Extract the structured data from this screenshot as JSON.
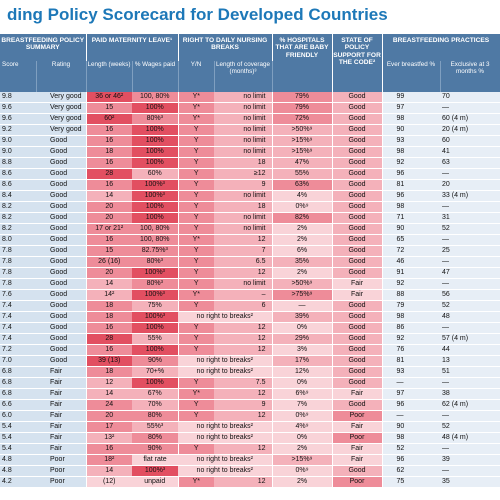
{
  "title": "ding Policy Scorecard for Developed Countries",
  "groups": {
    "summary": "BREASTFEEDING POLICY SUMMARY",
    "leave": "PAID MATERNITY LEAVE¹",
    "breaks": "RIGHT TO DAILY NURSING BREAKS",
    "hospitals": "% HOSPITALS THAT ARE BABY FRIENDLY",
    "code": "STATE OF POLICY SUPPORT FOR THE CODE²",
    "practices": "BREASTFEEDING PRACTICES"
  },
  "subheaders": {
    "score": "Score",
    "rating": "Rating",
    "length": "Length (weeks)",
    "wages": "% Wages paid",
    "yn": "Y/N",
    "coverage": "Length of coverage (months)³",
    "ever": "Ever breastfed %",
    "exclusive": "Exclusive at 3 months %"
  },
  "colors": {
    "header_blue": "#4f79a4",
    "title_blue": "#1d78b8",
    "summary_bg": "#d5e2ef",
    "practices_bg": "#e7eef6",
    "red1": "#e24f61",
    "red2": "#ee8c99",
    "red3": "#f4b1ba",
    "red4": "#f9d3d8"
  },
  "rows": [
    {
      "score": "9.8",
      "rating": "Very good",
      "length": "36 or 46²",
      "wages": "100, 80%",
      "yn": "Y*",
      "coverage": "no limit",
      "hosp": "79%",
      "code": "Good",
      "ever": "99",
      "excl": "70",
      "sh": [
        1,
        2,
        2,
        3,
        3,
        2,
        3
      ]
    },
    {
      "score": "9.6",
      "rating": "Very good",
      "length": "15",
      "wages": "100%",
      "yn": "Y*",
      "coverage": "no limit",
      "hosp": "79%",
      "code": "Good",
      "ever": "97",
      "excl": "—",
      "sh": [
        2,
        1,
        2,
        3,
        3,
        2,
        3
      ]
    },
    {
      "score": "9.6",
      "rating": "Very good",
      "length": "60²",
      "wages": "80%³",
      "yn": "Y*",
      "coverage": "no limit",
      "hosp": "72%",
      "code": "Good",
      "ever": "98",
      "excl": "60 (4 m)",
      "sh": [
        1,
        2,
        2,
        3,
        3,
        2,
        3
      ]
    },
    {
      "score": "9.2",
      "rating": "Very good",
      "length": "16",
      "wages": "100%",
      "yn": "Y",
      "coverage": "no limit",
      "hosp": ">50%⁹",
      "code": "Good",
      "ever": "90",
      "excl": "20 (4 m)",
      "sh": [
        2,
        1,
        2,
        3,
        3,
        3,
        3
      ]
    },
    {
      "score": "9.0",
      "rating": "Good",
      "length": "16",
      "wages": "100%",
      "yn": "Y",
      "coverage": "no limit",
      "hosp": ">15%⁹",
      "code": "Good",
      "ever": "93",
      "excl": "60",
      "sh": [
        2,
        1,
        2,
        3,
        3,
        3,
        3
      ]
    },
    {
      "score": "9.0",
      "rating": "Good",
      "length": "18",
      "wages": "100%",
      "yn": "Y",
      "coverage": "no limit",
      "hosp": ">15%⁹",
      "code": "Good",
      "ever": "98",
      "excl": "41",
      "sh": [
        2,
        1,
        2,
        3,
        3,
        3,
        3
      ]
    },
    {
      "score": "8.8",
      "rating": "Good",
      "length": "16",
      "wages": "100%",
      "yn": "Y",
      "coverage": "18",
      "hosp": "47%",
      "code": "Good",
      "ever": "92",
      "excl": "63",
      "sh": [
        2,
        1,
        2,
        3,
        3,
        3,
        3
      ]
    },
    {
      "score": "8.6",
      "rating": "Good",
      "length": "28",
      "wages": "60%",
      "yn": "Y",
      "coverage": "≥12",
      "hosp": "55%",
      "code": "Good",
      "ever": "96",
      "excl": "—",
      "sh": [
        1,
        3,
        2,
        3,
        3,
        3,
        3
      ]
    },
    {
      "score": "8.6",
      "rating": "Good",
      "length": "16",
      "wages": "100%³",
      "yn": "Y",
      "coverage": "9",
      "hosp": "63%",
      "code": "Good",
      "ever": "81",
      "excl": "20",
      "sh": [
        2,
        1,
        2,
        3,
        3,
        2,
        3
      ]
    },
    {
      "score": "8.4",
      "rating": "Good",
      "length": "14",
      "wages": "100%³",
      "yn": "Y",
      "coverage": "no limit",
      "hosp": "4%",
      "code": "Good",
      "ever": "96",
      "excl": "33 (4 m)",
      "sh": [
        3,
        1,
        2,
        3,
        3,
        4,
        3
      ]
    },
    {
      "score": "8.2",
      "rating": "Good",
      "length": "20",
      "wages": "100%",
      "yn": "Y",
      "coverage": "18",
      "hosp": "0%⁹",
      "code": "Good",
      "ever": "98",
      "excl": "—",
      "sh": [
        2,
        1,
        2,
        3,
        3,
        4,
        3
      ]
    },
    {
      "score": "8.2",
      "rating": "Good",
      "length": "20",
      "wages": "100%",
      "yn": "Y",
      "coverage": "no limit",
      "hosp": "82%",
      "code": "Good",
      "ever": "71",
      "excl": "31",
      "sh": [
        2,
        1,
        2,
        3,
        3,
        2,
        3
      ]
    },
    {
      "score": "8.2",
      "rating": "Good",
      "length": "17 or 21²",
      "wages": "100, 80%",
      "yn": "Y",
      "coverage": "no limit",
      "hosp": "2%",
      "code": "Good",
      "ever": "90",
      "excl": "52",
      "sh": [
        2,
        2,
        2,
        3,
        3,
        4,
        3
      ]
    },
    {
      "score": "8.0",
      "rating": "Good",
      "length": "16",
      "wages": "100, 80%",
      "yn": "Y*",
      "coverage": "12",
      "hosp": "2%",
      "code": "Good",
      "ever": "65",
      "excl": "—",
      "sh": [
        2,
        2,
        2,
        3,
        3,
        4,
        3
      ]
    },
    {
      "score": "7.8",
      "rating": "Good",
      "length": "15",
      "wages": "82.75%³",
      "yn": "Y",
      "coverage": "7",
      "hosp": "6%",
      "code": "Good",
      "ever": "72",
      "excl": "25",
      "sh": [
        2,
        2,
        2,
        3,
        3,
        4,
        3
      ]
    },
    {
      "score": "7.8",
      "rating": "Good",
      "length": "26 (16)",
      "wages": "80%³",
      "yn": "Y",
      "coverage": "6.5",
      "hosp": "35%",
      "code": "Good",
      "ever": "46",
      "excl": "—",
      "sh": [
        2,
        2,
        2,
        3,
        3,
        3,
        3
      ]
    },
    {
      "score": "7.8",
      "rating": "Good",
      "length": "20",
      "wages": "100%³",
      "yn": "Y",
      "coverage": "12",
      "hosp": "2%",
      "code": "Good",
      "ever": "91",
      "excl": "47",
      "sh": [
        2,
        1,
        2,
        3,
        3,
        4,
        3
      ]
    },
    {
      "score": "7.8",
      "rating": "Good",
      "length": "14",
      "wages": "80%³",
      "yn": "Y",
      "coverage": "no limit",
      "hosp": ">50%⁹",
      "code": "Fair",
      "ever": "92",
      "excl": "—",
      "sh": [
        3,
        2,
        2,
        3,
        3,
        3,
        4
      ]
    },
    {
      "score": "7.6",
      "rating": "Good",
      "length": "14²",
      "wages": "100%³",
      "yn": "Y*",
      "coverage": "–",
      "hosp": ">75%⁹",
      "code": "Fair",
      "ever": "88",
      "excl": "56",
      "sh": [
        3,
        1,
        2,
        3,
        3,
        2,
        4
      ]
    },
    {
      "score": "7.4",
      "rating": "Good",
      "length": "18",
      "wages": "75%",
      "yn": "Y",
      "coverage": "6",
      "hosp": "—",
      "code": "Good",
      "ever": "79",
      "excl": "52",
      "sh": [
        2,
        3,
        2,
        3,
        3,
        4,
        3
      ]
    },
    {
      "score": "7.4",
      "rating": "Good",
      "length": "18",
      "wages": "100%³",
      "yn": "",
      "coverage": "no right to breaks²",
      "hosp": "39%",
      "code": "Good",
      "ever": "98",
      "excl": "48",
      "sh": [
        2,
        1,
        4,
        4,
        4,
        3,
        3
      ]
    },
    {
      "score": "7.4",
      "rating": "Good",
      "length": "16",
      "wages": "100%",
      "yn": "Y",
      "coverage": "12",
      "hosp": "0%",
      "code": "Good",
      "ever": "86",
      "excl": "—",
      "sh": [
        2,
        1,
        2,
        3,
        3,
        4,
        3
      ]
    },
    {
      "score": "7.4",
      "rating": "Good",
      "length": "28",
      "wages": "55%",
      "yn": "Y",
      "coverage": "12",
      "hosp": "29%",
      "code": "Good",
      "ever": "92",
      "excl": "57 (4 m)",
      "sh": [
        1,
        3,
        2,
        3,
        3,
        3,
        3
      ]
    },
    {
      "score": "7.2",
      "rating": "Good",
      "length": "16",
      "wages": "100%",
      "yn": "Y",
      "coverage": "12",
      "hosp": "3%",
      "code": "Good",
      "ever": "76",
      "excl": "44",
      "sh": [
        2,
        1,
        2,
        3,
        3,
        4,
        3
      ]
    },
    {
      "score": "7.0",
      "rating": "Good",
      "length": "39 (13)",
      "wages": "90%",
      "yn": "",
      "coverage": "no right to breaks²",
      "hosp": "17%",
      "code": "Good",
      "ever": "81",
      "excl": "13",
      "sh": [
        1,
        2,
        4,
        4,
        4,
        3,
        3
      ]
    },
    {
      "score": "6.8",
      "rating": "Fair",
      "length": "18",
      "wages": "70+%",
      "yn": "",
      "coverage": "no right to breaks²",
      "hosp": "12%",
      "code": "Good",
      "ever": "93",
      "excl": "51",
      "sh": [
        2,
        3,
        4,
        4,
        4,
        4,
        3
      ]
    },
    {
      "score": "6.8",
      "rating": "Fair",
      "length": "12",
      "wages": "100%",
      "yn": "Y",
      "coverage": "7.5",
      "hosp": "0%",
      "code": "Good",
      "ever": "—",
      "excl": "—",
      "sh": [
        3,
        1,
        2,
        3,
        3,
        4,
        3
      ]
    },
    {
      "score": "6.8",
      "rating": "Fair",
      "length": "14",
      "wages": "67%",
      "yn": "Y*",
      "coverage": "12",
      "hosp": "6%⁹",
      "code": "Fair",
      "ever": "97",
      "excl": "38",
      "sh": [
        3,
        3,
        2,
        3,
        3,
        4,
        4
      ]
    },
    {
      "score": "6.6",
      "rating": "Fair",
      "length": "24",
      "wages": "70%",
      "yn": "Y",
      "coverage": "9",
      "hosp": "7%",
      "code": "Good",
      "ever": "96",
      "excl": "62 (4 m)",
      "sh": [
        2,
        3,
        2,
        3,
        3,
        4,
        3
      ]
    },
    {
      "score": "6.0",
      "rating": "Fair",
      "length": "20",
      "wages": "80%",
      "yn": "Y",
      "coverage": "12",
      "hosp": "0%⁹",
      "code": "Poor",
      "ever": "—",
      "excl": "—",
      "sh": [
        2,
        2,
        2,
        3,
        3,
        4,
        2
      ]
    },
    {
      "score": "5.4",
      "rating": "Fair",
      "length": "17",
      "wages": "55%³",
      "yn": "",
      "coverage": "no right to breaks²",
      "hosp": "4%⁹",
      "code": "Fair",
      "ever": "90",
      "excl": "52",
      "sh": [
        2,
        3,
        4,
        4,
        4,
        4,
        4
      ]
    },
    {
      "score": "5.4",
      "rating": "Fair",
      "length": "13²",
      "wages": "80%",
      "yn": "",
      "coverage": "no right to breaks²",
      "hosp": "0%",
      "code": "Poor",
      "ever": "98",
      "excl": "48 (4 m)",
      "sh": [
        3,
        2,
        4,
        4,
        4,
        4,
        2
      ]
    },
    {
      "score": "5.4",
      "rating": "Fair",
      "length": "16",
      "wages": "90%",
      "yn": "Y",
      "coverage": "12",
      "hosp": "2%",
      "code": "Fair",
      "ever": "52",
      "excl": "—",
      "sh": [
        2,
        2,
        2,
        3,
        3,
        4,
        4
      ]
    },
    {
      "score": "4.8",
      "rating": "Poor",
      "length": "18²",
      "wages": "flat rate",
      "yn": "",
      "coverage": "no right to breaks²",
      "hosp": ">15%⁹",
      "code": "Fair",
      "ever": "96",
      "excl": "39",
      "sh": [
        2,
        4,
        4,
        4,
        4,
        3,
        4
      ]
    },
    {
      "score": "4.8",
      "rating": "Poor",
      "length": "14",
      "wages": "100%³",
      "yn": "",
      "coverage": "no right to breaks²",
      "hosp": "0%⁹",
      "code": "Good",
      "ever": "62",
      "excl": "—",
      "sh": [
        3,
        1,
        4,
        4,
        4,
        4,
        3
      ]
    },
    {
      "score": "4.2",
      "rating": "Poor",
      "length": "(12)",
      "wages": "unpaid",
      "yn": "Y*",
      "coverage": "12",
      "hosp": "2%",
      "code": "Poor",
      "ever": "75",
      "excl": "35",
      "sh": [
        4,
        4,
        2,
        3,
        3,
        4,
        2
      ]
    }
  ]
}
